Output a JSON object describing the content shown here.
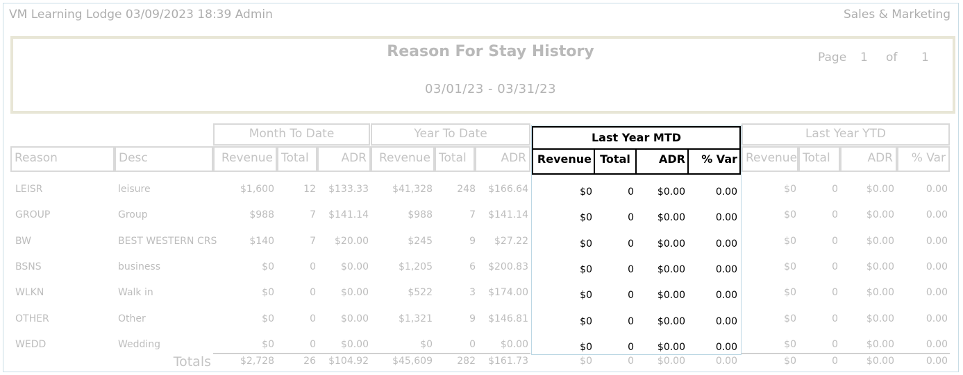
{
  "header": {
    "left": "VM Learning Lodge 03/09/2023 18:39  Admin",
    "right": "Sales & Marketing"
  },
  "report": {
    "title": "Reason For Stay History",
    "date_range": "03/01/23 - 03/31/23",
    "page_label": "Page",
    "page_num": "1",
    "of_label": "of",
    "page_total": "1"
  },
  "groups": {
    "mtd": "Month To Date",
    "ytd": "Year To Date",
    "ly_mtd": "Last Year MTD",
    "ly_ytd": "Last Year YTD"
  },
  "columns": {
    "reason": "Reason",
    "desc": "Desc",
    "revenue": "Revenue",
    "total": "Total",
    "adr": "ADR",
    "var": "% Var"
  },
  "rows": [
    {
      "reason": "LEISR",
      "desc": "leisure",
      "mtd": [
        "$1,600",
        "12",
        "$133.33"
      ],
      "ytd": [
        "$41,328",
        "248",
        "$166.64"
      ],
      "lymtd": [
        "$0",
        "0",
        "$0.00",
        "0.00"
      ],
      "lyytd": [
        "$0",
        "0",
        "$0.00",
        "0.00"
      ]
    },
    {
      "reason": "GROUP",
      "desc": "Group",
      "mtd": [
        "$988",
        "7",
        "$141.14"
      ],
      "ytd": [
        "$988",
        "7",
        "$141.14"
      ],
      "lymtd": [
        "$0",
        "0",
        "$0.00",
        "0.00"
      ],
      "lyytd": [
        "$0",
        "0",
        "$0.00",
        "0.00"
      ]
    },
    {
      "reason": "BW",
      "desc": "BEST WESTERN CRS",
      "mtd": [
        "$140",
        "7",
        "$20.00"
      ],
      "ytd": [
        "$245",
        "9",
        "$27.22"
      ],
      "lymtd": [
        "$0",
        "0",
        "$0.00",
        "0.00"
      ],
      "lyytd": [
        "$0",
        "0",
        "$0.00",
        "0.00"
      ]
    },
    {
      "reason": "BSNS",
      "desc": "business",
      "mtd": [
        "$0",
        "0",
        "$0.00"
      ],
      "ytd": [
        "$1,205",
        "6",
        "$200.83"
      ],
      "lymtd": [
        "$0",
        "0",
        "$0.00",
        "0.00"
      ],
      "lyytd": [
        "$0",
        "0",
        "$0.00",
        "0.00"
      ]
    },
    {
      "reason": "WLKN",
      "desc": "Walk in",
      "mtd": [
        "$0",
        "0",
        "$0.00"
      ],
      "ytd": [
        "$522",
        "3",
        "$174.00"
      ],
      "lymtd": [
        "$0",
        "0",
        "$0.00",
        "0.00"
      ],
      "lyytd": [
        "$0",
        "0",
        "$0.00",
        "0.00"
      ]
    },
    {
      "reason": "OTHER",
      "desc": "Other",
      "mtd": [
        "$0",
        "0",
        "$0.00"
      ],
      "ytd": [
        "$1,321",
        "9",
        "$146.81"
      ],
      "lymtd": [
        "$0",
        "0",
        "$0.00",
        "0.00"
      ],
      "lyytd": [
        "$0",
        "0",
        "$0.00",
        "0.00"
      ]
    },
    {
      "reason": "WEDD",
      "desc": "Wedding",
      "mtd": [
        "$0",
        "0",
        "$0.00"
      ],
      "ytd": [
        "$0",
        "0",
        "$0.00"
      ],
      "lymtd": [
        "$0",
        "0",
        "$0.00",
        "0.00"
      ],
      "lyytd": [
        "$0",
        "0",
        "$0.00",
        "0.00"
      ]
    }
  ],
  "totals": {
    "label": "Totals",
    "mtd": [
      "$2,728",
      "26",
      "$104.92"
    ],
    "ytd": [
      "$45,609",
      "282",
      "$161.73"
    ],
    "lymtd": [
      "$0",
      "0",
      "$0.00",
      "0.00"
    ],
    "lyytd": [
      "$0",
      "0",
      "$0.00",
      "0.00"
    ]
  }
}
